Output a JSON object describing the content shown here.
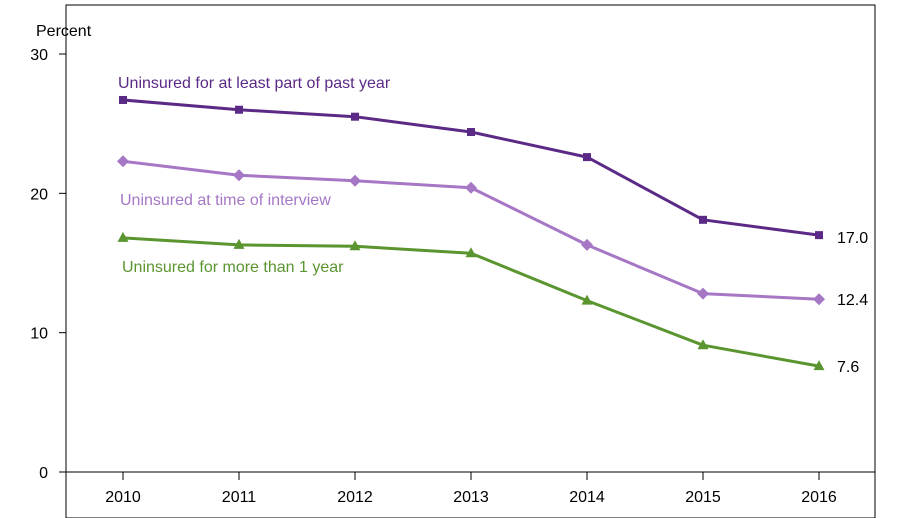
{
  "chart_data": {
    "type": "line",
    "ylabel": "Percent",
    "xlabel": "",
    "x": [
      "2010",
      "2011",
      "2012",
      "2013",
      "2014",
      "2015",
      "2016"
    ],
    "ylim": [
      0,
      30
    ],
    "yticks": [
      "0",
      "10",
      "20",
      "30"
    ],
    "grid": false,
    "series": [
      {
        "name": "Uninsured for at least part of past year",
        "marker": "square",
        "color": "#5b2a86",
        "values": [
          26.7,
          26.0,
          25.5,
          24.4,
          22.6,
          18.1,
          17.0
        ],
        "end_label": "17.0"
      },
      {
        "name": "Uninsured at time of interview",
        "marker": "diamond",
        "color": "#a577c5",
        "values": [
          22.3,
          21.3,
          20.9,
          20.4,
          16.3,
          12.8,
          12.4
        ],
        "end_label": "12.4"
      },
      {
        "name": "Uninsured for more than 1 year",
        "marker": "triangle",
        "color": "#5a9530",
        "values": [
          16.8,
          16.3,
          16.2,
          15.7,
          12.3,
          9.1,
          7.6
        ],
        "end_label": "7.6"
      }
    ]
  }
}
